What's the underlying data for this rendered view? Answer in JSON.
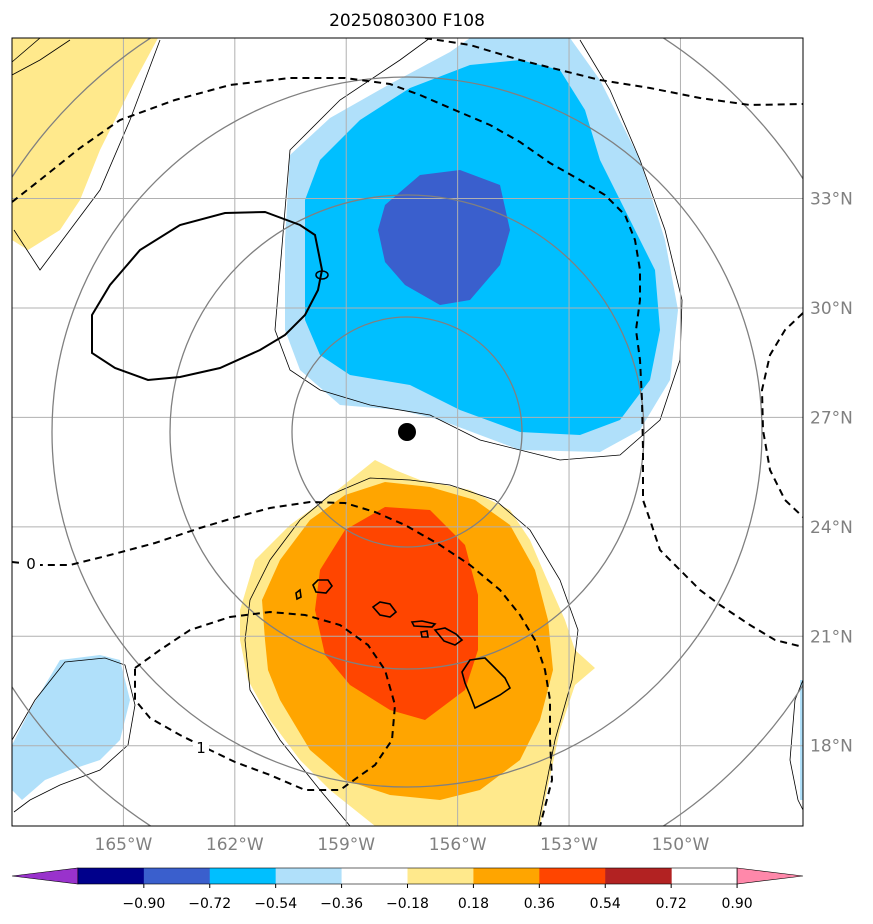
{
  "chart_data": {
    "type": "map-contour",
    "title": "2025080300 F108",
    "map": {
      "lon_range": [
        -168,
        -146.7
      ],
      "lat_range": [
        15.8,
        37.4
      ],
      "lon_ticks": [
        -165,
        -162,
        -159,
        -156,
        -153,
        -150
      ],
      "lon_tick_labels": [
        "165°W",
        "162°W",
        "159°W",
        "156°W",
        "153°W",
        "150°W"
      ],
      "lat_ticks": [
        18,
        21,
        24,
        27,
        30,
        33
      ],
      "lat_tick_labels": [
        "18°N",
        "21°N",
        "24°N",
        "27°N",
        "30°N",
        "33°N"
      ],
      "grid": true,
      "center_marker": {
        "lon": -157.3,
        "lat": 26.0
      }
    },
    "colorbar": {
      "levels": [
        -0.9,
        -0.72,
        -0.54,
        -0.36,
        -0.18,
        0.18,
        0.36,
        0.54,
        0.72,
        0.9
      ],
      "tick_labels": [
        "−0.90",
        "−0.72",
        "−0.54",
        "−0.36",
        "−0.18",
        "0.18",
        "0.36",
        "0.54",
        "0.72",
        "0.90"
      ],
      "colors": [
        "#9932cc",
        "#00008b",
        "#3a5fcd",
        "#00bfff",
        "#b0e0fa",
        "#ffffff",
        "#ffe98c",
        "#ffa500",
        "#ff4500",
        "#b22222",
        "#ff88aa"
      ],
      "extend": "both"
    },
    "contour_labels": [
      "0",
      "1"
    ]
  },
  "colors": {
    "coast": "#000000",
    "grid": "#b0b0b0",
    "rings": "#808080"
  }
}
